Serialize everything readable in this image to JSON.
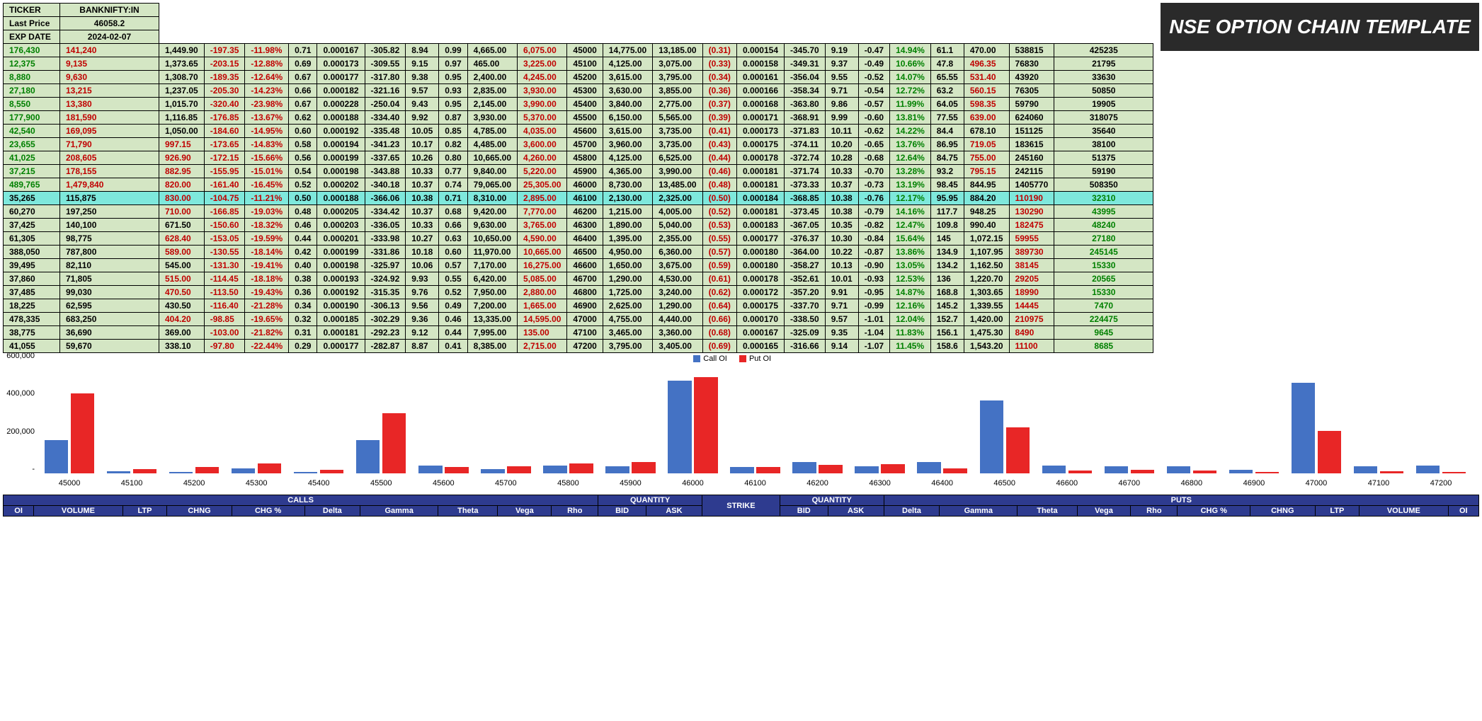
{
  "info": {
    "ticker_label": "TICKER",
    "ticker": "BANKNIFTY:IN",
    "price_label": "Last Price",
    "price": "46058.2",
    "exp_label": "EXP DATE",
    "exp": "2024-02-07"
  },
  "title": "NSE OPTION CHAIN TEMPLATE",
  "chart": {
    "ymax": 600000,
    "yticks": [
      0,
      200000,
      400000,
      600000
    ],
    "ytick_labels": [
      "-",
      "200,000",
      "400,000",
      "600,000"
    ],
    "legend": {
      "call": "Call OI",
      "put": "Put OI",
      "call_color": "#4472c4",
      "put_color": "#e82626"
    },
    "strikes": [
      45000,
      45100,
      45200,
      45300,
      45400,
      45500,
      45600,
      45700,
      45800,
      45900,
      46000,
      46100,
      46200,
      46300,
      46400,
      46500,
      46600,
      46700,
      46800,
      46900,
      47000,
      47100,
      47200
    ],
    "call_oi": [
      176430,
      12375,
      8880,
      27180,
      8550,
      177900,
      42540,
      23655,
      41025,
      37215,
      489765,
      35265,
      60270,
      37425,
      61305,
      388050,
      39495,
      37860,
      37485,
      18225,
      478335,
      38775,
      41055
    ],
    "put_oi": [
      425235,
      21795,
      33630,
      50850,
      19905,
      318075,
      35640,
      38100,
      51375,
      59190,
      508350,
      32310,
      43995,
      48240,
      27180,
      245145,
      15330,
      20565,
      15330,
      7470,
      224475,
      9645,
      8685
    ]
  },
  "headers": {
    "calls": "CALLS",
    "qty1": "QUANTITY",
    "strike": "STRIKE",
    "qty2": "QUANTITY",
    "puts": "PUTS",
    "cols_left": [
      "OI",
      "VOLUME",
      "LTP",
      "CHNG",
      "CHG %",
      "Delta",
      "Gamma",
      "Theta",
      "Vega",
      "Rho",
      "BID",
      "ASK"
    ],
    "cols_right": [
      "BID",
      "ASK",
      "Delta",
      "Gamma",
      "Theta",
      "Vega",
      "Rho",
      "CHG %",
      "CHNG",
      "LTP",
      "VOLUME",
      "OI"
    ]
  },
  "spot": 46058.2,
  "highlight_strike": 46100,
  "rows": [
    {
      "strike": 45000,
      "c": {
        "oi": "176,430",
        "vol": "141,240",
        "ltp": "1,449.90",
        "chng": -197.35,
        "chgp": "-11.98%",
        "d": 0.71,
        "g": "0.000167",
        "t": -305.82,
        "v": 8.94,
        "r": 0.99,
        "bid": "4,665.00",
        "ask": "6,075.00"
      },
      "p": {
        "bid": "14,775.00",
        "ask": "13,185.00",
        "d": "(0.31)",
        "g": "0.000154",
        "t": -345.7,
        "v": 9.19,
        "r": -0.47,
        "chgp": "14.94%",
        "chng": 61.1,
        "ltp": "470.00",
        "vol": "538815",
        "oi": "425235"
      }
    },
    {
      "strike": 45100,
      "c": {
        "oi": "12,375",
        "vol": "9,135",
        "ltp": "1,373.65",
        "chng": -203.15,
        "chgp": "-12.88%",
        "d": 0.69,
        "g": "0.000173",
        "t": -309.55,
        "v": 9.15,
        "r": 0.97,
        "bid": "465.00",
        "ask": "3,225.00"
      },
      "p": {
        "bid": "4,125.00",
        "ask": "3,075.00",
        "d": "(0.33)",
        "g": "0.000158",
        "t": -349.31,
        "v": 9.37,
        "r": -0.49,
        "chgp": "10.66%",
        "chng": 47.8,
        "ltp": "496.35",
        "vol": "76830",
        "oi": "21795",
        "ltp_red": true
      }
    },
    {
      "strike": 45200,
      "c": {
        "oi": "8,880",
        "vol": "9,630",
        "ltp": "1,308.70",
        "chng": -189.35,
        "chgp": "-12.64%",
        "d": 0.67,
        "g": "0.000177",
        "t": -317.8,
        "v": 9.38,
        "r": 0.95,
        "bid": "2,400.00",
        "ask": "4,245.00"
      },
      "p": {
        "bid": "3,615.00",
        "ask": "3,795.00",
        "d": "(0.34)",
        "g": "0.000161",
        "t": -356.04,
        "v": 9.55,
        "r": -0.52,
        "chgp": "14.07%",
        "chng": 65.55,
        "ltp": "531.40",
        "vol": "43920",
        "oi": "33630",
        "ltp_red": true
      }
    },
    {
      "strike": 45300,
      "c": {
        "oi": "27,180",
        "vol": "13,215",
        "ltp": "1,237.05",
        "chng": -205.3,
        "chgp": "-14.23%",
        "d": 0.66,
        "g": "0.000182",
        "t": -321.16,
        "v": 9.57,
        "r": 0.93,
        "bid": "2,835.00",
        "ask": "3,930.00"
      },
      "p": {
        "bid": "3,630.00",
        "ask": "3,855.00",
        "d": "(0.36)",
        "g": "0.000166",
        "t": -358.34,
        "v": 9.71,
        "r": -0.54,
        "chgp": "12.72%",
        "chng": 63.2,
        "ltp": "560.15",
        "vol": "76305",
        "oi": "50850",
        "ltp_red": true
      }
    },
    {
      "strike": 45400,
      "c": {
        "oi": "8,550",
        "vol": "13,380",
        "ltp": "1,015.70",
        "chng": -320.4,
        "chgp": "-23.98%",
        "d": 0.67,
        "g": "0.000228",
        "t": -250.04,
        "v": 9.43,
        "r": 0.95,
        "bid": "2,145.00",
        "ask": "3,990.00"
      },
      "p": {
        "bid": "3,840.00",
        "ask": "2,775.00",
        "d": "(0.37)",
        "g": "0.000168",
        "t": -363.8,
        "v": 9.86,
        "r": -0.57,
        "chgp": "11.99%",
        "chng": 64.05,
        "ltp": "598.35",
        "vol": "59790",
        "oi": "19905",
        "ltp_red": true
      }
    },
    {
      "strike": 45500,
      "c": {
        "oi": "177,900",
        "vol": "181,590",
        "ltp": "1,116.85",
        "chng": -176.85,
        "chgp": "-13.67%",
        "d": 0.62,
        "g": "0.000188",
        "t": -334.4,
        "v": 9.92,
        "r": 0.87,
        "bid": "3,930.00",
        "ask": "5,370.00"
      },
      "p": {
        "bid": "6,150.00",
        "ask": "5,565.00",
        "d": "(0.39)",
        "g": "0.000171",
        "t": -368.91,
        "v": 9.99,
        "r": -0.6,
        "chgp": "13.81%",
        "chng": 77.55,
        "ltp": "639.00",
        "vol": "624060",
        "oi": "318075",
        "ltp_red": true
      }
    },
    {
      "strike": 45600,
      "c": {
        "oi": "42,540",
        "vol": "169,095",
        "ltp": "1,050.00",
        "chng": -184.6,
        "chgp": "-14.95%",
        "d": 0.6,
        "g": "0.000192",
        "t": -335.48,
        "v": 10.05,
        "r": 0.85,
        "bid": "4,785.00",
        "ask": "4,035.00"
      },
      "p": {
        "bid": "3,615.00",
        "ask": "3,735.00",
        "d": "(0.41)",
        "g": "0.000173",
        "t": -371.83,
        "v": 10.11,
        "r": -0.62,
        "chgp": "14.22%",
        "chng": 84.4,
        "ltp": "678.10",
        "vol": "151125",
        "oi": "35640"
      }
    },
    {
      "strike": 45700,
      "c": {
        "oi": "23,655",
        "vol": "71,790",
        "ltp": "997.15",
        "chng": -173.65,
        "chgp": "-14.83%",
        "d": 0.58,
        "g": "0.000194",
        "t": -341.23,
        "v": 10.17,
        "r": 0.82,
        "bid": "4,485.00",
        "ask": "3,600.00",
        "ltp_red": true
      },
      "p": {
        "bid": "3,960.00",
        "ask": "3,735.00",
        "d": "(0.43)",
        "g": "0.000175",
        "t": -374.11,
        "v": 10.2,
        "r": -0.65,
        "chgp": "13.76%",
        "chng": 86.95,
        "ltp": "719.05",
        "vol": "183615",
        "oi": "38100",
        "ltp_red": true
      }
    },
    {
      "strike": 45800,
      "c": {
        "oi": "41,025",
        "vol": "208,605",
        "ltp": "926.90",
        "chng": -172.15,
        "chgp": "-15.66%",
        "d": 0.56,
        "g": "0.000199",
        "t": -337.65,
        "v": 10.26,
        "r": 0.8,
        "bid": "10,665.00",
        "ask": "4,260.00",
        "ltp_red": true
      },
      "p": {
        "bid": "4,125.00",
        "ask": "6,525.00",
        "d": "(0.44)",
        "g": "0.000178",
        "t": -372.74,
        "v": 10.28,
        "r": -0.68,
        "chgp": "12.64%",
        "chng": 84.75,
        "ltp": "755.00",
        "vol": "245160",
        "oi": "51375",
        "ltp_red": true
      }
    },
    {
      "strike": 45900,
      "c": {
        "oi": "37,215",
        "vol": "178,155",
        "ltp": "882.95",
        "chng": -155.95,
        "chgp": "-15.01%",
        "d": 0.54,
        "g": "0.000198",
        "t": -343.88,
        "v": 10.33,
        "r": 0.77,
        "bid": "9,840.00",
        "ask": "5,220.00",
        "ltp_red": true
      },
      "p": {
        "bid": "4,365.00",
        "ask": "3,990.00",
        "d": "(0.46)",
        "g": "0.000181",
        "t": -371.74,
        "v": 10.33,
        "r": -0.7,
        "chgp": "13.28%",
        "chng": 93.2,
        "ltp": "795.15",
        "vol": "242115",
        "oi": "59190",
        "ltp_red": true
      }
    },
    {
      "strike": 46000,
      "c": {
        "oi": "489,765",
        "vol": "1,479,840",
        "ltp": "820.00",
        "chng": -161.4,
        "chgp": "-16.45%",
        "d": 0.52,
        "g": "0.000202",
        "t": -340.18,
        "v": 10.37,
        "r": 0.74,
        "bid": "79,065.00",
        "ask": "25,305.00",
        "ltp_red": true
      },
      "p": {
        "bid": "8,730.00",
        "ask": "13,485.00",
        "d": "(0.48)",
        "g": "0.000181",
        "t": -373.33,
        "v": 10.37,
        "r": -0.73,
        "chgp": "13.19%",
        "chng": 98.45,
        "ltp": "844.95",
        "vol": "1405770",
        "oi": "508350"
      }
    },
    {
      "strike": 46100,
      "c": {
        "oi": "35,265",
        "vol": "115,875",
        "ltp": "830.00",
        "chng": -104.75,
        "chgp": "-11.21%",
        "d": 0.5,
        "g": "0.000188",
        "t": -366.06,
        "v": 10.38,
        "r": 0.71,
        "bid": "8,310.00",
        "ask": "2,895.00",
        "ltp_red": true
      },
      "p": {
        "bid": "2,130.00",
        "ask": "2,325.00",
        "d": "(0.50)",
        "g": "0.000184",
        "t": -368.85,
        "v": 10.38,
        "r": -0.76,
        "chgp": "12.17%",
        "chng": 95.95,
        "ltp": "884.20",
        "vol": "110190",
        "oi": "32310"
      }
    },
    {
      "strike": 46200,
      "c": {
        "oi": "60,270",
        "vol": "197,250",
        "ltp": "710.00",
        "chng": -166.85,
        "chgp": "-19.03%",
        "d": 0.48,
        "g": "0.000205",
        "t": -334.42,
        "v": 10.37,
        "r": 0.68,
        "bid": "9,420.00",
        "ask": "7,770.00",
        "ltp_red": true
      },
      "p": {
        "bid": "1,215.00",
        "ask": "4,005.00",
        "d": "(0.52)",
        "g": "0.000181",
        "t": -373.45,
        "v": 10.38,
        "r": -0.79,
        "chgp": "14.16%",
        "chng": 117.7,
        "ltp": "948.25",
        "vol": "130290",
        "oi": "43995"
      }
    },
    {
      "strike": 46300,
      "c": {
        "oi": "37,425",
        "vol": "140,100",
        "ltp": "671.50",
        "chng": -150.6,
        "chgp": "-18.32%",
        "d": 0.46,
        "g": "0.000203",
        "t": -336.05,
        "v": 10.33,
        "r": 0.66,
        "bid": "9,630.00",
        "ask": "3,765.00"
      },
      "p": {
        "bid": "1,890.00",
        "ask": "5,040.00",
        "d": "(0.53)",
        "g": "0.000183",
        "t": -367.05,
        "v": 10.35,
        "r": -0.82,
        "chgp": "12.47%",
        "chng": 109.8,
        "ltp": "990.40",
        "vol": "182475",
        "oi": "48240"
      }
    },
    {
      "strike": 46400,
      "c": {
        "oi": "61,305",
        "vol": "98,775",
        "ltp": "628.40",
        "chng": -153.05,
        "chgp": "-19.59%",
        "d": 0.44,
        "g": "0.000201",
        "t": -333.98,
        "v": 10.27,
        "r": 0.63,
        "bid": "10,650.00",
        "ask": "4,590.00",
        "ltp_red": true
      },
      "p": {
        "bid": "1,395.00",
        "ask": "2,355.00",
        "d": "(0.55)",
        "g": "0.000177",
        "t": -376.37,
        "v": 10.3,
        "r": -0.84,
        "chgp": "15.64%",
        "chng": 145,
        "ltp": "1,072.15",
        "vol": "59955",
        "oi": "27180"
      }
    },
    {
      "strike": 46500,
      "c": {
        "oi": "388,050",
        "vol": "787,800",
        "ltp": "589.00",
        "chng": -130.55,
        "chgp": "-18.14%",
        "d": 0.42,
        "g": "0.000199",
        "t": -331.86,
        "v": 10.18,
        "r": 0.6,
        "bid": "11,970.00",
        "ask": "10,665.00",
        "ltp_red": true
      },
      "p": {
        "bid": "4,950.00",
        "ask": "6,360.00",
        "d": "(0.57)",
        "g": "0.000180",
        "t": -364.0,
        "v": 10.22,
        "r": -0.87,
        "chgp": "13.86%",
        "chng": 134.9,
        "ltp": "1,107.95",
        "vol": "389730",
        "oi": "245145"
      }
    },
    {
      "strike": 46600,
      "c": {
        "oi": "39,495",
        "vol": "82,110",
        "ltp": "545.00",
        "chng": -131.3,
        "chgp": "-19.41%",
        "d": 0.4,
        "g": "0.000198",
        "t": -325.97,
        "v": 10.06,
        "r": 0.57,
        "bid": "7,170.00",
        "ask": "16,275.00"
      },
      "p": {
        "bid": "1,650.00",
        "ask": "3,675.00",
        "d": "(0.59)",
        "g": "0.000180",
        "t": -358.27,
        "v": 10.13,
        "r": -0.9,
        "chgp": "13.05%",
        "chng": 134.2,
        "ltp": "1,162.50",
        "vol": "38145",
        "oi": "15330"
      }
    },
    {
      "strike": 46700,
      "c": {
        "oi": "37,860",
        "vol": "71,805",
        "ltp": "515.00",
        "chng": -114.45,
        "chgp": "-18.18%",
        "d": 0.38,
        "g": "0.000193",
        "t": -324.92,
        "v": 9.93,
        "r": 0.55,
        "bid": "6,420.00",
        "ask": "5,085.00",
        "ltp_red": true
      },
      "p": {
        "bid": "1,290.00",
        "ask": "4,530.00",
        "d": "(0.61)",
        "g": "0.000178",
        "t": -352.61,
        "v": 10.01,
        "r": -0.93,
        "chgp": "12.53%",
        "chng": 136,
        "ltp": "1,220.70",
        "vol": "29205",
        "oi": "20565"
      }
    },
    {
      "strike": 46800,
      "c": {
        "oi": "37,485",
        "vol": "99,030",
        "ltp": "470.50",
        "chng": -113.5,
        "chgp": "-19.43%",
        "d": 0.36,
        "g": "0.000192",
        "t": -315.35,
        "v": 9.76,
        "r": 0.52,
        "bid": "7,950.00",
        "ask": "2,880.00",
        "ltp_red": true
      },
      "p": {
        "bid": "1,725.00",
        "ask": "3,240.00",
        "d": "(0.62)",
        "g": "0.000172",
        "t": -357.2,
        "v": 9.91,
        "r": -0.95,
        "chgp": "14.87%",
        "chng": 168.8,
        "ltp": "1,303.65",
        "vol": "18990",
        "oi": "15330"
      }
    },
    {
      "strike": 46900,
      "c": {
        "oi": "18,225",
        "vol": "62,595",
        "ltp": "430.50",
        "chng": -116.4,
        "chgp": "-21.28%",
        "d": 0.34,
        "g": "0.000190",
        "t": -306.13,
        "v": 9.56,
        "r": 0.49,
        "bid": "7,200.00",
        "ask": "1,665.00"
      },
      "p": {
        "bid": "2,625.00",
        "ask": "1,290.00",
        "d": "(0.64)",
        "g": "0.000175",
        "t": -337.7,
        "v": 9.71,
        "r": -0.99,
        "chgp": "12.16%",
        "chng": 145.2,
        "ltp": "1,339.55",
        "vol": "14445",
        "oi": "7470"
      }
    },
    {
      "strike": 47000,
      "c": {
        "oi": "478,335",
        "vol": "683,250",
        "ltp": "404.20",
        "chng": -98.85,
        "chgp": "-19.65%",
        "d": 0.32,
        "g": "0.000185",
        "t": -302.29,
        "v": 9.36,
        "r": 0.46,
        "bid": "13,335.00",
        "ask": "14,595.00",
        "ltp_red": true
      },
      "p": {
        "bid": "4,755.00",
        "ask": "4,440.00",
        "d": "(0.66)",
        "g": "0.000170",
        "t": -338.5,
        "v": 9.57,
        "r": -1.01,
        "chgp": "12.04%",
        "chng": 152.7,
        "ltp": "1,420.00",
        "vol": "210975",
        "oi": "224475"
      }
    },
    {
      "strike": 47100,
      "c": {
        "oi": "38,775",
        "vol": "36,690",
        "ltp": "369.00",
        "chng": -103.0,
        "chgp": "-21.82%",
        "d": 0.31,
        "g": "0.000181",
        "t": -292.23,
        "v": 9.12,
        "r": 0.44,
        "bid": "7,995.00",
        "ask": "135.00"
      },
      "p": {
        "bid": "3,465.00",
        "ask": "3,360.00",
        "d": "(0.68)",
        "g": "0.000167",
        "t": -325.09,
        "v": 9.35,
        "r": -1.04,
        "chgp": "11.83%",
        "chng": 156.1,
        "ltp": "1,475.30",
        "vol": "8490",
        "oi": "9645"
      }
    },
    {
      "strike": 47200,
      "c": {
        "oi": "41,055",
        "vol": "59,670",
        "ltp": "338.10",
        "chng": -97.8,
        "chgp": "-22.44%",
        "d": 0.29,
        "g": "0.000177",
        "t": -282.87,
        "v": 8.87,
        "r": 0.41,
        "bid": "8,385.00",
        "ask": "2,715.00"
      },
      "p": {
        "bid": "3,795.00",
        "ask": "3,405.00",
        "d": "(0.69)",
        "g": "0.000165",
        "t": -316.66,
        "v": 9.14,
        "r": -1.07,
        "chgp": "11.45%",
        "chng": 158.6,
        "ltp": "1,543.20",
        "vol": "11100",
        "oi": "8685"
      }
    }
  ]
}
